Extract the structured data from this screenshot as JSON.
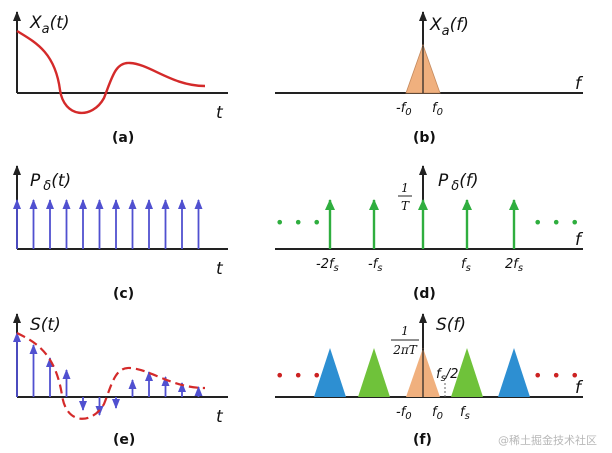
{
  "panels": {
    "a": {
      "ylabel": "X",
      "ysub": "a",
      "yarg": "(t)",
      "xlabel": "t",
      "caption": "(a)"
    },
    "b": {
      "ylabel": "X",
      "ysub": "a",
      "yarg": "(f)",
      "xlabel": "f",
      "tick_neg": "-f",
      "tick_neg_sub": "0",
      "tick_pos": "f",
      "tick_pos_sub": "0",
      "caption": "(b)"
    },
    "c": {
      "ylabel": "P",
      "ysub": "δ",
      "yarg": "(t)",
      "xlabel": "t",
      "caption": "(c)"
    },
    "d": {
      "ylabel": "P",
      "ysub": "δ",
      "yarg": "(f)",
      "xlabel": "f",
      "frac_num": "1",
      "frac_den": "T",
      "dots": "• • •",
      "ticks": [
        {
          "pre": "-2f",
          "sub": "s"
        },
        {
          "pre": "-f",
          "sub": "s"
        },
        {
          "pre": "f",
          "sub": "s"
        },
        {
          "pre": "2f",
          "sub": "s"
        }
      ],
      "caption": "(d)"
    },
    "e": {
      "ylabel": "S(t)",
      "xlabel": "t",
      "caption": "(e)"
    },
    "f": {
      "ylabel": "S(f)",
      "xlabel": "f",
      "frac_num": "1",
      "frac_den": "2πT",
      "half": "f",
      "half_sub": "s",
      "half_tail": "/2",
      "dots": "• • •",
      "tick_neg": "-f",
      "tick_neg_sub": "0",
      "tick_pos": "f",
      "tick_pos_sub": "0",
      "tick_fs": "f",
      "tick_fs_sub": "s",
      "caption": "(f)"
    }
  },
  "watermark": "@稀土掘金技术社区",
  "colors": {
    "signal": "#d42a2a",
    "impulse": "#5050d0",
    "spectrum": "#2fae3f",
    "baseband": "#f0b07e",
    "triangle_blue": "#2d8fd2",
    "triangle_green": "#6fc23a",
    "dots_red": "#cc2222",
    "dots_green": "#2fae3f"
  }
}
